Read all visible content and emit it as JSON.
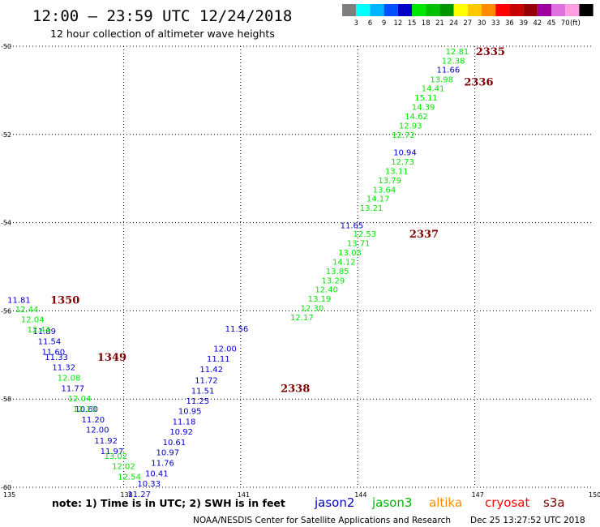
{
  "header": {
    "title": "12:00 – 23:59 UTC 12/24/2018",
    "subtitle": "12 hour collection of altimeter wave heights"
  },
  "color_scale": {
    "unit_label": "(ft)",
    "bins": [
      {
        "label": "",
        "color": "#7f7f7f"
      },
      {
        "label": "3",
        "color": "#00ffff"
      },
      {
        "label": "6",
        "color": "#00b4ff"
      },
      {
        "label": "9",
        "color": "#0050ff"
      },
      {
        "label": "12",
        "color": "#0000c8"
      },
      {
        "label": "15",
        "color": "#00e600"
      },
      {
        "label": "18",
        "color": "#00c000"
      },
      {
        "label": "21",
        "color": "#009600"
      },
      {
        "label": "24",
        "color": "#ffff00"
      },
      {
        "label": "27",
        "color": "#ffc800"
      },
      {
        "label": "30",
        "color": "#ff8c00"
      },
      {
        "label": "33",
        "color": "#ff0000"
      },
      {
        "label": "36",
        "color": "#c80000"
      },
      {
        "label": "39",
        "color": "#960000"
      },
      {
        "label": "42",
        "color": "#a000a0"
      },
      {
        "label": "45",
        "color": "#e070e0"
      },
      {
        "label": "70",
        "color": "#ff9ee0"
      },
      {
        "label": "",
        "color": "#000000"
      }
    ]
  },
  "chart_data": {
    "type": "scatter",
    "x_label_unit": "degrees longitude",
    "xlim": [
      135,
      150
    ],
    "ylim": [
      -60,
      -50
    ],
    "x_ticks": [
      135,
      138,
      141,
      144,
      147,
      150
    ],
    "y_ticks": [
      -50,
      -52,
      -54,
      -56,
      -58,
      -60
    ],
    "grid": true,
    "series": [
      {
        "name": "jason2",
        "color": "#0000c8",
        "points": [
          {
            "x": 146.32,
            "y": -50.52,
            "label": "11.66"
          },
          {
            "x": 145.21,
            "y": -52.4,
            "label": "10.94"
          },
          {
            "x": 143.85,
            "y": -54.05,
            "label": "11.65"
          },
          {
            "x": 140.9,
            "y": -56.4,
            "label": "11.56"
          },
          {
            "x": 140.6,
            "y": -56.85,
            "label": "12.00"
          },
          {
            "x": 140.43,
            "y": -57.08,
            "label": "11.11"
          },
          {
            "x": 140.25,
            "y": -57.32,
            "label": "11.42"
          },
          {
            "x": 140.12,
            "y": -57.56,
            "label": "11.72"
          },
          {
            "x": 140.03,
            "y": -57.8,
            "label": "11.51"
          },
          {
            "x": 139.9,
            "y": -58.03,
            "label": "11.25"
          },
          {
            "x": 139.7,
            "y": -58.26,
            "label": "10.95"
          },
          {
            "x": 139.55,
            "y": -58.5,
            "label": "11.18"
          },
          {
            "x": 139.48,
            "y": -58.73,
            "label": "10.92"
          },
          {
            "x": 139.3,
            "y": -58.97,
            "label": "10.61"
          },
          {
            "x": 139.13,
            "y": -59.2,
            "label": "10.97"
          },
          {
            "x": 139.0,
            "y": -59.44,
            "label": "11.76"
          },
          {
            "x": 138.85,
            "y": -59.68,
            "label": "10.41"
          },
          {
            "x": 138.65,
            "y": -59.91,
            "label": "10.33"
          },
          {
            "x": 138.4,
            "y": -60.15,
            "label": "11.27"
          },
          {
            "x": 135.32,
            "y": -55.74,
            "label": "11.81"
          },
          {
            "x": 135.97,
            "y": -56.45,
            "label": "11.89"
          },
          {
            "x": 136.1,
            "y": -56.68,
            "label": "11.54"
          },
          {
            "x": 136.2,
            "y": -56.92,
            "label": "11.60"
          },
          {
            "x": 136.28,
            "y": -57.04,
            "label": "11.33"
          },
          {
            "x": 136.47,
            "y": -57.27,
            "label": "11.32"
          },
          {
            "x": 136.7,
            "y": -57.75,
            "label": "11.77"
          },
          {
            "x": 137.05,
            "y": -58.22,
            "label": "10.60"
          },
          {
            "x": 137.22,
            "y": -58.46,
            "label": "11.20"
          },
          {
            "x": 137.33,
            "y": -58.69,
            "label": "12.00"
          },
          {
            "x": 137.55,
            "y": -58.93,
            "label": "11.92"
          },
          {
            "x": 137.7,
            "y": -59.17,
            "label": "11.97"
          }
        ]
      },
      {
        "name": "jason3",
        "color": "#00e600",
        "points": [
          {
            "x": 146.55,
            "y": -50.11,
            "label": "12.81"
          },
          {
            "x": 146.45,
            "y": -50.32,
            "label": "12.38"
          },
          {
            "x": 146.15,
            "y": -50.74,
            "label": "13.98"
          },
          {
            "x": 145.93,
            "y": -50.95,
            "label": "14.41"
          },
          {
            "x": 145.75,
            "y": -51.16,
            "label": "15.11"
          },
          {
            "x": 145.68,
            "y": -51.37,
            "label": "14.39"
          },
          {
            "x": 145.5,
            "y": -51.58,
            "label": "14.62"
          },
          {
            "x": 145.35,
            "y": -51.79,
            "label": "12.93"
          },
          {
            "x": 145.17,
            "y": -52.0,
            "label": "12.72"
          },
          {
            "x": 145.15,
            "y": -52.61,
            "label": "12.73"
          },
          {
            "x": 145.0,
            "y": -52.82,
            "label": "13.11"
          },
          {
            "x": 144.82,
            "y": -53.03,
            "label": "13.79"
          },
          {
            "x": 144.68,
            "y": -53.24,
            "label": "13.64"
          },
          {
            "x": 144.52,
            "y": -53.45,
            "label": "14.17"
          },
          {
            "x": 144.35,
            "y": -53.66,
            "label": "13.21"
          },
          {
            "x": 144.18,
            "y": -54.25,
            "label": "12.53"
          },
          {
            "x": 144.02,
            "y": -54.46,
            "label": "13.71"
          },
          {
            "x": 143.8,
            "y": -54.67,
            "label": "13.03"
          },
          {
            "x": 143.65,
            "y": -54.88,
            "label": "14.12"
          },
          {
            "x": 143.48,
            "y": -55.09,
            "label": "13.85"
          },
          {
            "x": 143.37,
            "y": -55.3,
            "label": "13.29"
          },
          {
            "x": 143.2,
            "y": -55.51,
            "label": "12.40"
          },
          {
            "x": 143.02,
            "y": -55.72,
            "label": "13.19"
          },
          {
            "x": 142.83,
            "y": -55.93,
            "label": "12.30"
          },
          {
            "x": 142.57,
            "y": -56.14,
            "label": "12.17"
          },
          {
            "x": 135.52,
            "y": -55.96,
            "label": "12.44"
          },
          {
            "x": 135.67,
            "y": -56.19,
            "label": "12.04"
          },
          {
            "x": 135.83,
            "y": -56.42,
            "label": "12.44"
          },
          {
            "x": 136.6,
            "y": -57.51,
            "label": "12.08"
          },
          {
            "x": 136.87,
            "y": -57.98,
            "label": "12.04"
          },
          {
            "x": 137.0,
            "y": -58.22,
            "label": "12.10"
          },
          {
            "x": 137.8,
            "y": -59.28,
            "label": "13.02"
          },
          {
            "x": 138.0,
            "y": -59.51,
            "label": "12.02"
          },
          {
            "x": 138.15,
            "y": -59.75,
            "label": "12.54"
          }
        ]
      }
    ],
    "pass_labels": [
      {
        "x": 147.4,
        "y": -50.11,
        "label": "2335"
      },
      {
        "x": 147.1,
        "y": -50.8,
        "label": "2336"
      },
      {
        "x": 145.7,
        "y": -54.25,
        "label": "2337"
      },
      {
        "x": 142.4,
        "y": -57.75,
        "label": "2338"
      },
      {
        "x": 136.5,
        "y": -55.74,
        "label": "1350"
      },
      {
        "x": 137.7,
        "y": -57.04,
        "label": "1349"
      }
    ]
  },
  "footer": {
    "note": "note:  1) Time is in UTC;  2) SWH is in feet",
    "legend": [
      {
        "label": "jason2",
        "color": "#0000c8"
      },
      {
        "label": "jason3",
        "color": "#00b400"
      },
      {
        "label": "altika",
        "color": "#ff8c00"
      },
      {
        "label": "cryosat",
        "color": "#ff0000"
      },
      {
        "label": "s3a",
        "color": "#7f0000"
      }
    ],
    "credit": "NOAA/NESDIS Center for Satellite Applications and Research",
    "timestamp": "Dec 25 13:27:52 UTC 2018"
  }
}
